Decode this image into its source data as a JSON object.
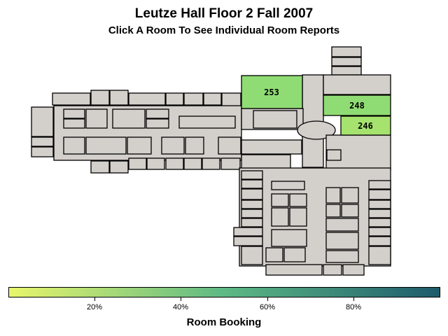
{
  "title": "Leutze Hall Floor 2 Fall 2007",
  "subtitle": "Click A Room To See Individual Room Reports",
  "legend": {
    "title": "Room Booking",
    "ticks": [
      {
        "label": "20%",
        "value": 20
      },
      {
        "label": "40%",
        "value": 40
      },
      {
        "label": "60%",
        "value": 60
      },
      {
        "label": "80%",
        "value": 80
      }
    ],
    "colors": {
      "low": "#e8f56b",
      "mid": "#5db985",
      "high": "#1d5b6c"
    }
  },
  "rooms": [
    {
      "label": "253",
      "color": "#90dc74"
    },
    {
      "label": "248",
      "color": "#90dc74"
    },
    {
      "label": "246",
      "color": "#a6e36e"
    }
  ],
  "colors": {
    "unbooked": "#d3cfcb",
    "outline": "#000000"
  }
}
